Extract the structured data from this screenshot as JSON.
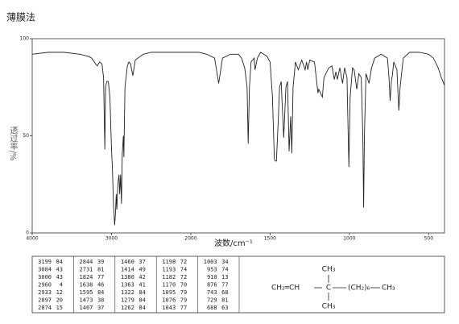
{
  "chart_data": {
    "type": "line",
    "title": "薄膜法",
    "x_label": "波数/cm⁻¹",
    "y_label": "透过率/%",
    "x": [
      4000,
      3800,
      3600,
      3400,
      3300,
      3250,
      3200,
      3180,
      3150,
      3120,
      3100,
      3084,
      3075,
      3060,
      3040,
      3020,
      3000,
      2990,
      2975,
      2960,
      2950,
      2940,
      2933,
      2920,
      2905,
      2897,
      2885,
      2874,
      2865,
      2850,
      2844,
      2830,
      2800,
      2780,
      2760,
      2731,
      2700,
      2600,
      2500,
      2400,
      2300,
      2200,
      2100,
      2000,
      1950,
      1900,
      1850,
      1824,
      1800,
      1750,
      1700,
      1680,
      1660,
      1645,
      1638,
      1630,
      1620,
      1600,
      1595,
      1580,
      1560,
      1540,
      1520,
      1500,
      1485,
      1473,
      1467,
      1460,
      1450,
      1440,
      1430,
      1414,
      1400,
      1390,
      1380,
      1370,
      1363,
      1355,
      1340,
      1322,
      1300,
      1279,
      1270,
      1262,
      1250,
      1220,
      1198,
      1193,
      1182,
      1170,
      1160,
      1130,
      1110,
      1095,
      1085,
      1076,
      1060,
      1043,
      1030,
      1015,
      1003,
      995,
      980,
      970,
      953,
      940,
      925,
      915,
      910,
      905,
      895,
      876,
      860,
      840,
      800,
      760,
      750,
      743,
      735,
      729,
      720,
      700,
      688,
      680,
      660,
      620,
      560,
      500,
      470,
      440,
      420,
      400
    ],
    "series": [
      {
        "color": "#222222",
        "values": [
          92,
          93,
          93,
          92,
          91,
          90,
          87,
          86,
          88,
          87,
          80,
          43,
          75,
          78,
          78,
          70,
          43,
          35,
          15,
          4,
          10,
          20,
          12,
          25,
          30,
          20,
          30,
          15,
          40,
          50,
          39,
          75,
          86,
          88,
          87,
          81,
          89,
          92,
          93,
          93,
          93,
          93,
          93,
          93,
          93,
          92,
          90,
          77,
          90,
          92,
          92,
          90,
          85,
          75,
          46,
          75,
          88,
          90,
          84,
          90,
          93,
          92,
          91,
          88,
          70,
          38,
          37,
          37,
          55,
          75,
          78,
          49,
          75,
          78,
          42,
          60,
          41,
          75,
          88,
          84,
          89,
          84,
          88,
          84,
          89,
          88,
          72,
          74,
          72,
          70,
          80,
          85,
          86,
          79,
          83,
          79,
          85,
          77,
          85,
          80,
          34,
          70,
          85,
          84,
          74,
          82,
          80,
          50,
          13,
          50,
          82,
          77,
          85,
          90,
          92,
          90,
          80,
          68,
          78,
          81,
          88,
          84,
          63,
          75,
          90,
          93,
          93,
          92,
          90,
          85,
          80,
          76
        ]
      }
    ],
    "xlim": [
      4000,
      400
    ],
    "x_scale_change": 2000,
    "xticks": [
      4000,
      3000,
      2000,
      1500,
      1000,
      500
    ],
    "ylim": [
      0,
      100
    ],
    "yticks": [
      0,
      50,
      100
    ]
  },
  "peak_table": {
    "rows": [
      [
        "3199",
        "84",
        "2844",
        "39",
        "1460",
        "37",
        "1198",
        "72",
        "1003",
        "34"
      ],
      [
        "3084",
        "43",
        "2731",
        "81",
        "1414",
        "49",
        "1193",
        "74",
        "953",
        "74"
      ],
      [
        "3000",
        "43",
        "1824",
        "77",
        "1380",
        "42",
        "1182",
        "72",
        "910",
        "13"
      ],
      [
        "2960",
        "4",
        "1638",
        "46",
        "1363",
        "41",
        "1170",
        "70",
        "876",
        "77"
      ],
      [
        "2933",
        "12",
        "1595",
        "84",
        "1322",
        "84",
        "1095",
        "79",
        "743",
        "68"
      ],
      [
        "2897",
        "20",
        "1473",
        "38",
        "1279",
        "84",
        "1076",
        "79",
        "729",
        "81"
      ],
      [
        "2874",
        "15",
        "1467",
        "37",
        "1262",
        "84",
        "1043",
        "77",
        "688",
        "63"
      ]
    ]
  },
  "structure": {
    "left": "CH₂═CH",
    "center": "C",
    "right": "(CH₂)₆",
    "end": "CH₃",
    "top": "CH₃",
    "bottom": "CH₃"
  }
}
